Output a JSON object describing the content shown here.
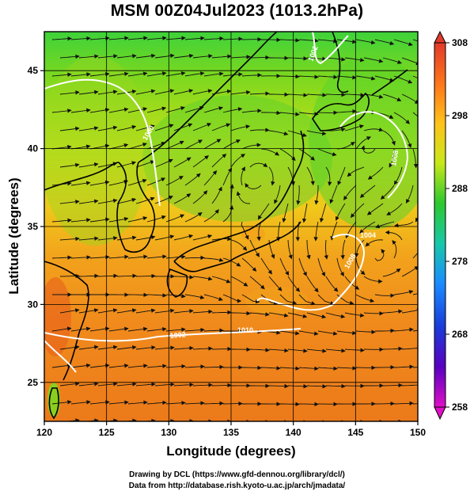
{
  "title": "MSM 00Z04Jul2023 (1013.2hPa)",
  "axes": {
    "xlabel": "Longitude (degrees)",
    "ylabel": "Latitude  (degrees)",
    "x_ticks": [
      "120",
      "125",
      "130",
      "135",
      "140",
      "145",
      "150"
    ],
    "y_ticks": [
      "25",
      "30",
      "35",
      "40",
      "45"
    ]
  },
  "colorbar": {
    "ticks": [
      "308",
      "298",
      "288",
      "278",
      "268",
      "258"
    ],
    "colors": [
      "#e0004f",
      "#ff6a1a",
      "#ffc21a",
      "#e8e81a",
      "#9ad81a",
      "#2ec82e",
      "#11b8a0",
      "#1a8cff",
      "#1a3cd8",
      "#5a00c0",
      "#d000d8"
    ]
  },
  "contour_labels": [
    "1000",
    "1002",
    "1002",
    "1008",
    "1008",
    "1010",
    "1004"
  ],
  "credits": {
    "line1": "Drawing by DCL (https://www.gfd-dennou.org/library/dcl/)",
    "line2": "Data from http://database.rish.kyoto-u.ac.jp/arch/jmadata/"
  }
}
